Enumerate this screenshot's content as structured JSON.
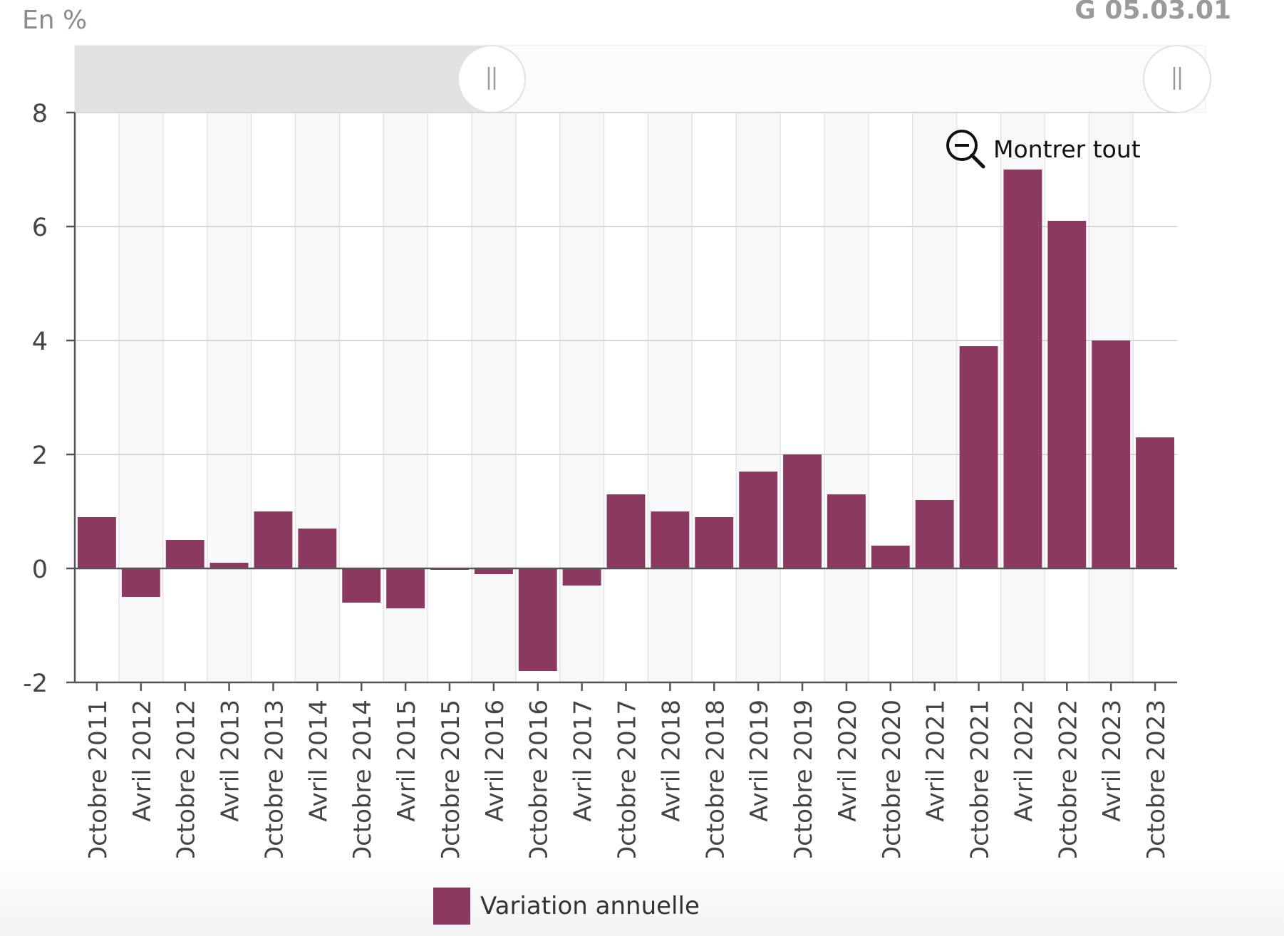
{
  "header": {
    "unit_label": "En %",
    "chart_code": "G 05.03.01"
  },
  "zoom_reset": {
    "label": "Montrer tout",
    "icon": "zoom-out-icon"
  },
  "navigator": {
    "left_handle_icon": "grip-handle-icon",
    "right_handle_icon": "grip-handle-icon"
  },
  "legend": {
    "label": "Variation annuelle"
  },
  "colors": {
    "bar": "#8b3960",
    "grid": "#d6d6d6",
    "axis": "#555555",
    "band": "#f8f8f8",
    "navigator_selected": "#e2e2e2"
  },
  "chart_data": {
    "type": "bar",
    "categories": [
      "Octobre 2011",
      "Avril 2012",
      "Octobre 2012",
      "Avril 2013",
      "Octobre 2013",
      "Avril 2014",
      "Octobre 2014",
      "Avril 2015",
      "Octobre 2015",
      "Avril 2016",
      "Octobre 2016",
      "Avril 2017",
      "Octobre 2017",
      "Avril 2018",
      "Octobre 2018",
      "Avril 2019",
      "Octobre 2019",
      "Avril 2020",
      "Octobre 2020",
      "Avril 2021",
      "Octobre 2021",
      "Avril 2022",
      "Octobre 2022",
      "Avril 2023",
      "Octobre 2023"
    ],
    "series": [
      {
        "name": "Variation annuelle",
        "values": [
          0.9,
          -0.5,
          0.5,
          0.1,
          1.0,
          0.7,
          -0.6,
          -0.7,
          0.0,
          -0.1,
          -1.8,
          -0.3,
          1.3,
          1.0,
          0.9,
          1.7,
          2.0,
          1.3,
          0.4,
          1.2,
          3.9,
          7.0,
          6.1,
          4.0,
          2.3
        ]
      }
    ],
    "ylim": [
      -2,
      8
    ],
    "yticks": [
      -2,
      0,
      2,
      4,
      6,
      8
    ],
    "ylabel": "En %",
    "grid": true,
    "legend_position": "bottom-center"
  }
}
